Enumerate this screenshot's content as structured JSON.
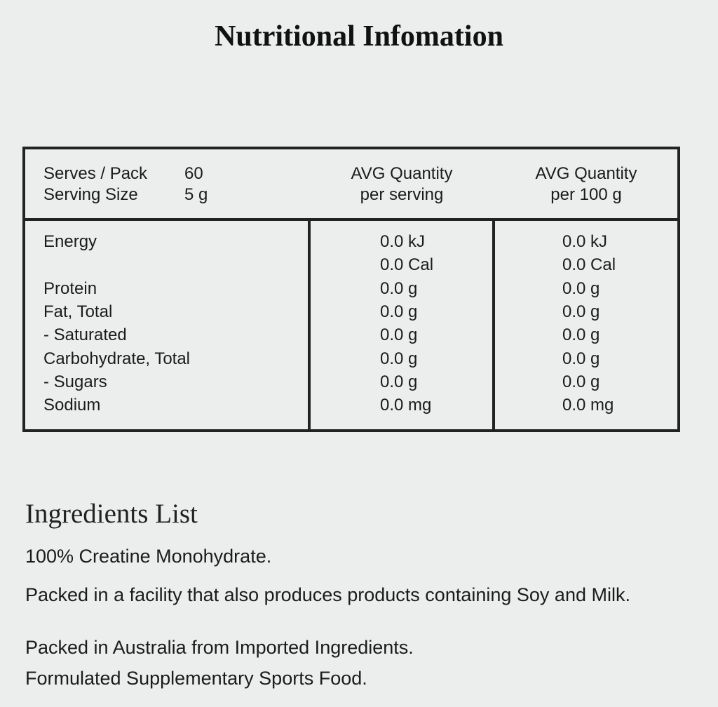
{
  "header": {
    "title": "Nutritional Infomation"
  },
  "table": {
    "serves_label": "Serves / Pack",
    "serves_value": "60",
    "size_label": "Serving Size",
    "size_value": "5 g",
    "columns": [
      [
        "AVG Quantity",
        "per serving"
      ],
      [
        "AVG Quantity",
        "per 100 g"
      ]
    ],
    "rows": [
      {
        "label": "Energy",
        "per_serving": [
          "0.0 kJ",
          "0.0 Cal"
        ],
        "per_100g": [
          "0.0 kJ",
          "0.0 Cal"
        ]
      },
      {
        "label": "Protein",
        "per_serving": [
          "0.0 g"
        ],
        "per_100g": [
          "0.0 g"
        ]
      },
      {
        "label": "Fat, Total",
        "per_serving": [
          "0.0 g"
        ],
        "per_100g": [
          "0.0 g"
        ]
      },
      {
        "label": "- Saturated",
        "per_serving": [
          "0.0 g"
        ],
        "per_100g": [
          "0.0 g"
        ]
      },
      {
        "label": "Carbohydrate, Total",
        "per_serving": [
          "0.0 g"
        ],
        "per_100g": [
          "0.0 g"
        ]
      },
      {
        "label": "- Sugars",
        "per_serving": [
          "0.0 g"
        ],
        "per_100g": [
          "0.0 g"
        ]
      },
      {
        "label": "Sodium",
        "per_serving": [
          "0.0 mg"
        ],
        "per_100g": [
          "0.0 mg"
        ]
      }
    ]
  },
  "ingredients": {
    "title": "Ingredients List",
    "paragraphs": [
      "100% Creatine Monohydrate.",
      "Packed in a facility that also produces products containing Soy and Milk.",
      "Packed in Australia from Imported Ingredients.",
      "Formulated Supplementary Sports Food."
    ]
  }
}
